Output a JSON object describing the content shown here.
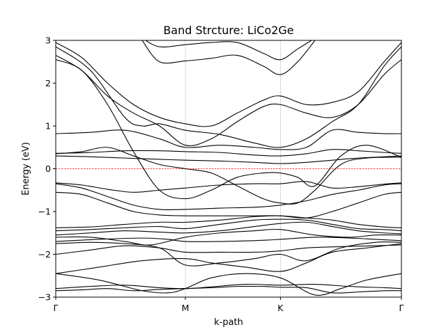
{
  "chart_data": {
    "type": "line",
    "title": "Band Strcture: LiCo2Ge",
    "xlabel": "k-path",
    "ylabel": "Energy (eV)",
    "ylim": [
      -3,
      3
    ],
    "xlim": [
      0,
      4.0
    ],
    "yticks": [
      -3,
      -2,
      -1,
      0,
      1,
      2,
      3
    ],
    "ytick_labels": [
      "−3",
      "−2",
      "−1",
      "0",
      "1",
      "2",
      "3"
    ],
    "kpoints": [
      {
        "label": "Γ",
        "x": 0.0
      },
      {
        "label": "M",
        "x": 1.5
      },
      {
        "label": "K",
        "x": 2.6
      },
      {
        "label": "Γ",
        "x": 4.0
      }
    ],
    "fermi_level": 0,
    "fermi_color": "#ff0000",
    "band_color": "#000000",
    "grid": "vertical lines at high-symmetry points",
    "series": [
      {
        "x": [
          0,
          0.3,
          0.6,
          0.9,
          1.2,
          1.5,
          1.8,
          2.1,
          2.4,
          2.6,
          2.9,
          3.2,
          3.5,
          3.8,
          4.0
        ],
        "y": [
          -2.85,
          -2.83,
          -2.8,
          -2.85,
          -2.82,
          -2.8,
          -2.78,
          -2.75,
          -2.75,
          -2.77,
          -2.78,
          -2.9,
          -2.88,
          -2.85,
          -2.85
        ]
      },
      {
        "x": [
          0,
          0.4,
          0.8,
          1.2,
          1.5,
          1.8,
          2.2,
          2.6,
          3.0,
          3.4,
          3.8,
          4.0
        ],
        "y": [
          -2.8,
          -2.75,
          -2.72,
          -2.78,
          -2.8,
          -2.76,
          -2.7,
          -2.72,
          -2.7,
          -2.75,
          -2.78,
          -2.8
        ]
      },
      {
        "x": [
          0,
          0.5,
          1.0,
          1.3,
          1.5,
          1.8,
          2.2,
          2.6,
          3.0,
          3.3,
          3.6,
          4.0
        ],
        "y": [
          -2.45,
          -2.6,
          -2.85,
          -2.9,
          -2.8,
          -2.55,
          -2.45,
          -2.55,
          -2.95,
          -2.8,
          -2.6,
          -2.45
        ]
      },
      {
        "x": [
          0,
          0.5,
          1.0,
          1.5,
          1.8,
          2.2,
          2.6,
          2.9,
          3.2,
          3.6,
          4.0
        ],
        "y": [
          -2.45,
          -2.3,
          -2.15,
          -2.1,
          -2.2,
          -2.3,
          -2.4,
          -2.2,
          -1.95,
          -1.85,
          -1.75
        ]
      },
      {
        "x": [
          0,
          0.4,
          0.8,
          1.2,
          1.5,
          1.9,
          2.3,
          2.6,
          2.9,
          3.3,
          3.7,
          4.0
        ],
        "y": [
          -2.0,
          -1.9,
          -1.8,
          -1.85,
          -1.95,
          -1.95,
          -1.95,
          -1.92,
          -1.85,
          -1.82,
          -1.8,
          -1.78
        ]
      },
      {
        "x": [
          0,
          0.4,
          0.8,
          1.2,
          1.5,
          1.9,
          2.3,
          2.6,
          2.9,
          3.3,
          3.7,
          4.0
        ],
        "y": [
          -1.75,
          -1.72,
          -1.75,
          -1.85,
          -2.25,
          -2.2,
          -2.1,
          -2.0,
          -2.15,
          -1.85,
          -1.72,
          -1.72
        ]
      },
      {
        "x": [
          0,
          0.5,
          1.0,
          1.3,
          1.5,
          1.9,
          2.3,
          2.6,
          3.0,
          3.4,
          3.7,
          4.0
        ],
        "y": [
          -1.7,
          -1.65,
          -1.62,
          -1.65,
          -1.7,
          -1.7,
          -1.68,
          -1.65,
          -1.6,
          -1.62,
          -1.65,
          -1.68
        ]
      },
      {
        "x": [
          0,
          0.4,
          0.8,
          1.1,
          1.5,
          1.9,
          2.3,
          2.6,
          3.0,
          3.4,
          3.7,
          4.0
        ],
        "y": [
          -1.6,
          -1.6,
          -1.7,
          -1.78,
          -1.6,
          -1.5,
          -1.45,
          -1.42,
          -1.55,
          -1.6,
          -1.55,
          -1.55
        ]
      },
      {
        "x": [
          0,
          0.4,
          0.8,
          1.2,
          1.5,
          1.9,
          2.3,
          2.6,
          2.9,
          3.2,
          3.5,
          3.8,
          4.0
        ],
        "y": [
          -1.55,
          -1.5,
          -1.45,
          -1.48,
          -1.5,
          -1.45,
          -1.35,
          -1.28,
          -1.25,
          -1.35,
          -1.45,
          -1.5,
          -1.52
        ]
      },
      {
        "x": [
          0,
          0.4,
          0.8,
          1.2,
          1.5,
          1.9,
          2.3,
          2.6,
          2.9,
          3.2,
          3.5,
          3.8,
          4.0
        ],
        "y": [
          -1.45,
          -1.42,
          -1.38,
          -1.35,
          -1.4,
          -1.3,
          -1.2,
          -1.18,
          -1.2,
          -1.3,
          -1.4,
          -1.42,
          -1.45
        ]
      },
      {
        "x": [
          0,
          0.4,
          0.8,
          1.2,
          1.5,
          1.9,
          2.3,
          2.6,
          2.9,
          3.2,
          3.5,
          3.8,
          4.0
        ],
        "y": [
          -1.38,
          -1.36,
          -1.3,
          -1.25,
          -1.25,
          -1.2,
          -1.12,
          -1.1,
          -1.15,
          -1.2,
          -1.3,
          -1.36,
          -1.38
        ]
      },
      {
        "x": [
          0,
          0.3,
          0.6,
          0.9,
          1.2,
          1.5,
          1.9,
          2.3,
          2.6,
          2.9,
          3.2,
          3.5,
          3.8,
          4.0
        ],
        "y": [
          -0.55,
          -0.6,
          -0.8,
          -1.0,
          -1.08,
          -1.1,
          -1.1,
          -1.1,
          -1.1,
          -1.15,
          -1.0,
          -0.8,
          -0.6,
          -0.55
        ]
      },
      {
        "x": [
          0,
          0.3,
          0.6,
          0.9,
          1.2,
          1.5,
          1.9,
          2.3,
          2.6,
          2.9,
          3.2,
          3.5,
          3.8,
          4.0
        ],
        "y": [
          -0.35,
          -0.45,
          -0.65,
          -0.85,
          -0.95,
          -0.95,
          -0.92,
          -0.9,
          -0.85,
          -0.75,
          -0.6,
          -0.5,
          -0.38,
          -0.35
        ]
      },
      {
        "x": [
          0,
          0.3,
          0.6,
          0.9,
          1.2,
          1.5,
          1.9,
          2.3,
          2.6,
          2.9,
          3.2,
          3.5,
          3.8,
          4.0
        ],
        "y": [
          -0.33,
          -0.38,
          -0.48,
          -0.55,
          -0.5,
          -0.45,
          -0.38,
          -0.35,
          -0.35,
          -0.3,
          -0.45,
          -0.42,
          -0.36,
          -0.33
        ]
      },
      {
        "x": [
          0,
          0.3,
          0.6,
          0.9,
          1.2,
          1.5,
          1.8,
          2.1,
          2.4,
          2.6,
          2.8,
          3.0,
          3.3,
          3.6,
          4.0
        ],
        "y": [
          2.55,
          2.3,
          1.5,
          0.4,
          -0.5,
          -0.7,
          -0.5,
          -0.2,
          -0.1,
          -0.1,
          -0.2,
          -0.4,
          0.3,
          0.55,
          0.27
        ]
      },
      {
        "x": [
          0,
          0.3,
          0.6,
          0.9,
          1.2,
          1.5,
          1.8,
          2.1,
          2.4,
          2.6,
          2.8,
          3.0,
          3.3,
          3.6,
          4.0
        ],
        "y": [
          0.35,
          0.4,
          0.5,
          0.3,
          0.1,
          0.0,
          -0.1,
          -0.4,
          -0.7,
          -0.8,
          -0.8,
          -0.5,
          0.1,
          0.25,
          0.27
        ]
      },
      {
        "x": [
          0,
          0.4,
          0.8,
          1.2,
          1.5,
          1.9,
          2.3,
          2.6,
          2.9,
          3.2,
          3.5,
          3.8,
          4.0
        ],
        "y": [
          0.3,
          0.28,
          0.25,
          0.22,
          0.2,
          0.18,
          0.15,
          0.12,
          0.15,
          0.2,
          0.25,
          0.28,
          0.3
        ]
      },
      {
        "x": [
          0,
          0.4,
          0.8,
          1.2,
          1.5,
          1.9,
          2.3,
          2.6,
          2.9,
          3.2,
          3.5,
          3.8,
          4.0
        ],
        "y": [
          0.36,
          0.38,
          0.42,
          0.42,
          0.4,
          0.38,
          0.32,
          0.3,
          0.35,
          0.45,
          0.42,
          0.38,
          0.36
        ]
      },
      {
        "x": [
          0,
          0.4,
          0.8,
          1.2,
          1.5,
          1.9,
          2.3,
          2.6,
          2.9,
          3.2,
          3.5,
          3.8,
          4.0
        ],
        "y": [
          0.82,
          0.85,
          0.9,
          0.7,
          0.5,
          0.55,
          0.5,
          0.45,
          0.5,
          0.9,
          0.85,
          0.82,
          0.82
        ]
      },
      {
        "x": [
          0,
          0.4,
          0.8,
          1.0,
          1.2,
          1.5,
          1.9,
          2.3,
          2.6,
          2.9,
          3.2,
          3.5,
          3.8,
          4.0
        ],
        "y": [
          2.85,
          2.3,
          1.2,
          1.0,
          1.05,
          0.9,
          0.8,
          0.6,
          0.5,
          0.7,
          1.1,
          1.5,
          2.4,
          2.85
        ]
      },
      {
        "x": [
          0,
          0.3,
          0.6,
          0.9,
          1.2,
          1.5,
          1.8,
          2.1,
          2.4,
          2.6,
          2.9,
          3.2,
          3.5,
          3.8,
          4.0
        ],
        "y": [
          2.65,
          2.3,
          1.7,
          1.3,
          1.0,
          0.55,
          0.7,
          1.1,
          1.45,
          1.5,
          1.3,
          1.2,
          1.5,
          2.2,
          2.55
        ]
      },
      {
        "x": [
          0,
          0.3,
          0.6,
          0.9,
          1.2,
          1.5,
          1.8,
          2.1,
          2.4,
          2.6,
          2.9,
          3.2,
          3.5,
          3.8,
          4.0
        ],
        "y": [
          2.95,
          2.6,
          2.0,
          1.5,
          1.2,
          1.05,
          1.0,
          1.3,
          1.6,
          1.7,
          1.5,
          1.55,
          1.8,
          2.5,
          2.95
        ]
      },
      {
        "x": [
          1.0,
          1.2,
          1.5,
          1.8,
          2.1,
          2.4,
          2.6,
          2.8,
          3.0
        ],
        "y": [
          3.0,
          2.5,
          2.52,
          2.58,
          2.65,
          2.4,
          2.2,
          2.5,
          3.0
        ]
      },
      {
        "x": [
          1.0,
          1.2,
          1.5,
          1.8,
          2.1,
          2.4,
          2.6,
          2.8,
          3.0
        ],
        "y": [
          3.05,
          2.85,
          2.9,
          2.95,
          2.95,
          2.7,
          2.55,
          2.8,
          3.05
        ]
      }
    ]
  }
}
